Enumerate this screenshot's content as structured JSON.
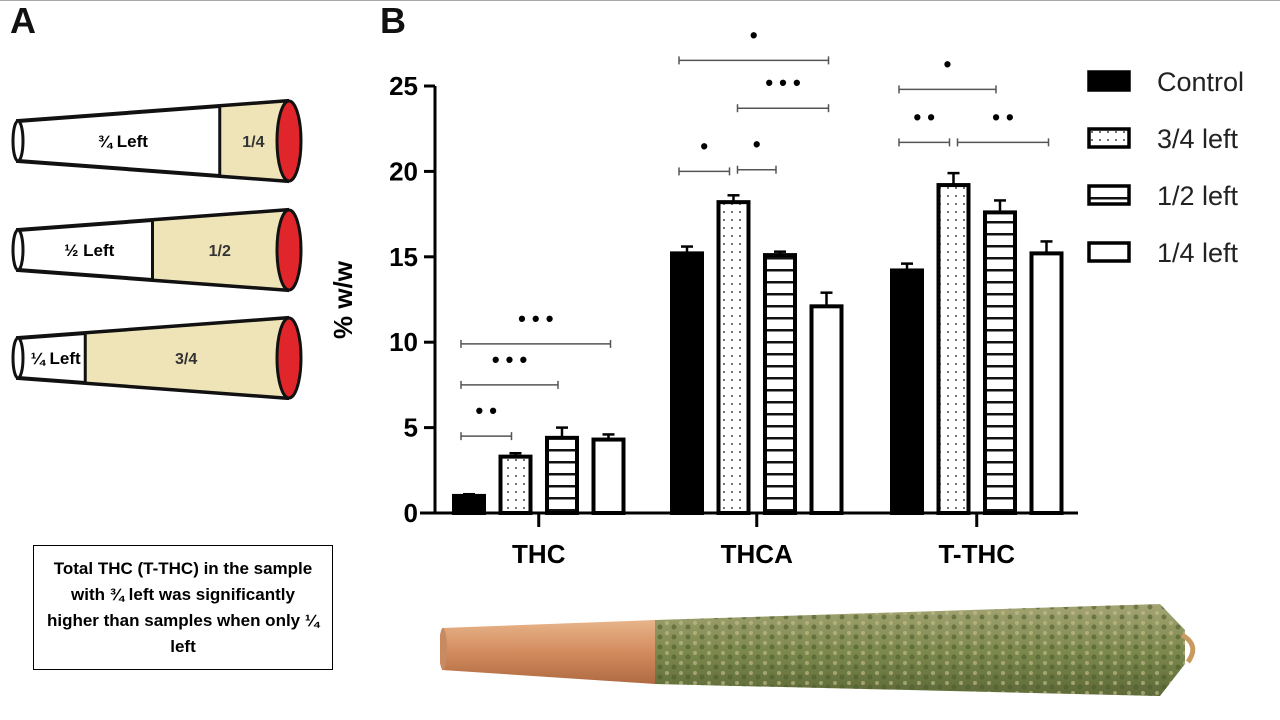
{
  "panel_labels": {
    "a": "A",
    "b": "B"
  },
  "diagram": {
    "cones": [
      {
        "left_label": "¾ Left",
        "burnt_label": "1/4",
        "left_fraction": 0.75
      },
      {
        "left_label": "½ Left",
        "burnt_label": "1/2",
        "left_fraction": 0.5
      },
      {
        "left_label": "¼ Left",
        "burnt_label": "3/4",
        "left_fraction": 0.25
      }
    ],
    "colors": {
      "burnt": "#efe3b8",
      "tip": "#e0262a"
    }
  },
  "note": "Total THC (T-THC) in the sample with ¾ left was significantly higher than samples when only ¼ left",
  "chart_data": {
    "type": "bar",
    "title": "",
    "xlabel": "",
    "ylabel": "% w/w",
    "ylim": [
      0,
      25
    ],
    "yticks": [
      "0",
      "5",
      "10",
      "15",
      "20",
      "25"
    ],
    "categories": [
      "THC",
      "THCA",
      "T-THC"
    ],
    "legend_position": "right",
    "grid": false,
    "series": [
      {
        "name": "Control",
        "pattern": "solid-black",
        "values": [
          1.0,
          15.2,
          14.2
        ],
        "errors": [
          0.1,
          0.4,
          0.4
        ]
      },
      {
        "name": "3/4 left",
        "pattern": "dotted",
        "values": [
          3.3,
          18.2,
          19.2
        ],
        "errors": [
          0.2,
          0.4,
          0.7
        ]
      },
      {
        "name": "1/2 left",
        "pattern": "horizontal-stripes",
        "values": [
          4.4,
          15.1,
          17.6
        ],
        "errors": [
          0.6,
          0.2,
          0.7
        ]
      },
      {
        "name": "1/4 left",
        "pattern": "white",
        "values": [
          4.3,
          12.1,
          15.2
        ],
        "errors": [
          0.3,
          0.8,
          0.7
        ]
      }
    ],
    "significance": [
      {
        "category": "THC",
        "from": 0,
        "to": 1,
        "level": 4.5,
        "stars": "• •"
      },
      {
        "category": "THC",
        "from": 0,
        "to": 2,
        "level": 7.5,
        "stars": "• • •"
      },
      {
        "category": "THC",
        "from": 0,
        "to": 3,
        "level": 9.9,
        "stars": "• • •"
      },
      {
        "category": "THCA",
        "from": 0,
        "to": 1,
        "level": 20.0,
        "stars": "•"
      },
      {
        "category": "THCA",
        "from": 1,
        "to": 2,
        "level": 20.1,
        "stars": "•"
      },
      {
        "category": "THCA",
        "from": 1,
        "to": 3,
        "level": 23.7,
        "stars": "• • •"
      },
      {
        "category": "THCA",
        "from": 0,
        "to": 3,
        "level": 26.5,
        "stars": "•"
      },
      {
        "category": "T-THC",
        "from": 0,
        "to": 1,
        "level": 21.7,
        "stars": "• •"
      },
      {
        "category": "T-THC",
        "from": 1,
        "to": 3,
        "level": 21.7,
        "stars": "• •"
      },
      {
        "category": "T-THC",
        "from": 0,
        "to": 2,
        "level": 24.8,
        "stars": "•"
      }
    ]
  }
}
